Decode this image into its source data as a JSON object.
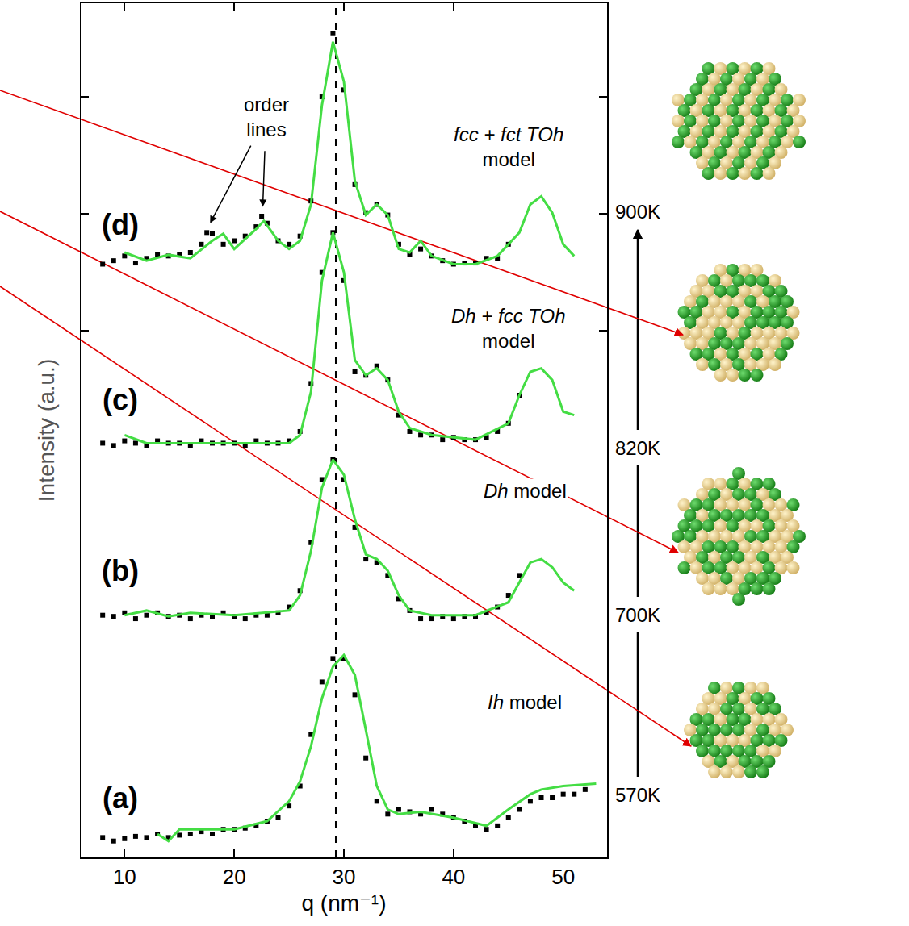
{
  "chart_data": {
    "type": "line",
    "xlabel": "q (nm⁻¹)",
    "ylabel": "Intensity (a.u.)",
    "xlim": [
      6,
      54
    ],
    "xticks": [
      10,
      20,
      30,
      40,
      50
    ],
    "ylim": [
      0,
      7.3
    ],
    "yticks": [
      0.5,
      1.5,
      2.5,
      3.5,
      4.5,
      5.5,
      6.5
    ],
    "tick_labels": "x",
    "grid": false,
    "vline": 29.3,
    "series": [
      {
        "name": "(a)",
        "type": "scatter",
        "marker": "square",
        "color": "#000000",
        "label_at": [
          9.6,
          0.51
        ],
        "x": [
          8,
          9,
          10,
          11,
          12,
          13,
          14,
          15,
          16,
          17,
          18,
          19,
          20,
          21,
          22,
          23,
          24,
          25,
          26,
          27,
          28,
          29,
          30,
          31,
          32,
          33,
          34,
          35,
          36,
          37,
          38,
          39,
          40,
          41,
          42,
          43,
          44,
          45,
          46,
          47,
          48,
          49,
          50,
          51,
          52
        ],
        "values": [
          0.17,
          0.14,
          0.16,
          0.18,
          0.17,
          0.2,
          0.17,
          0.19,
          0.2,
          0.22,
          0.2,
          0.24,
          0.24,
          0.25,
          0.27,
          0.31,
          0.34,
          0.44,
          0.61,
          1.05,
          1.5,
          1.7,
          1.7,
          1.39,
          0.85,
          0.48,
          0.37,
          0.41,
          0.39,
          0.37,
          0.41,
          0.37,
          0.34,
          0.31,
          0.27,
          0.24,
          0.27,
          0.34,
          0.41,
          0.48,
          0.51,
          0.51,
          0.54,
          0.54,
          0.58
        ]
      },
      {
        "name": "Ih model",
        "type": "line",
        "line_style": "solid",
        "color": "#44dd44",
        "label_at": [
          46.5,
          1.33
        ],
        "x": [
          13,
          14,
          15,
          17,
          20,
          23,
          25,
          26,
          27,
          28,
          29,
          30,
          31,
          32,
          33,
          34,
          35,
          37,
          40,
          43,
          45,
          47,
          48,
          50,
          53
        ],
        "values": [
          0.2,
          0.14,
          0.24,
          0.24,
          0.24,
          0.31,
          0.48,
          0.65,
          0.95,
          1.36,
          1.63,
          1.73,
          1.56,
          1.09,
          0.61,
          0.41,
          0.37,
          0.39,
          0.34,
          0.27,
          0.41,
          0.54,
          0.58,
          0.61,
          0.63
        ]
      },
      {
        "name": "(b)",
        "type": "scatter",
        "marker": "square",
        "color": "#000000",
        "label_at": [
          9.6,
          2.45
        ],
        "x": [
          8,
          9,
          10,
          11,
          12,
          13,
          14,
          15,
          16,
          17,
          18,
          19,
          20,
          21,
          22,
          23,
          24,
          25,
          26,
          27,
          28,
          29,
          30,
          31,
          32,
          33,
          34,
          35,
          36,
          37,
          38,
          39,
          40,
          41,
          42,
          43,
          44,
          45,
          46
        ],
        "values": [
          2.07,
          2.06,
          2.09,
          2.04,
          2.07,
          2.09,
          2.06,
          2.07,
          2.04,
          2.07,
          2.06,
          2.09,
          2.06,
          2.04,
          2.07,
          2.07,
          2.09,
          2.14,
          2.28,
          2.69,
          3.23,
          3.4,
          3.23,
          2.82,
          2.55,
          2.52,
          2.41,
          2.21,
          2.11,
          2.04,
          2.04,
          2.06,
          2.04,
          2.06,
          2.06,
          2.09,
          2.14,
          2.24,
          2.41
        ]
      },
      {
        "name": "Dh model",
        "type": "line",
        "line_style": "solid",
        "color": "#44dd44",
        "label_at": [
          46.5,
          3.13
        ],
        "x": [
          10,
          12,
          14,
          16,
          20,
          25,
          26,
          27,
          28,
          29,
          30,
          31,
          32,
          33,
          34,
          35,
          36,
          38,
          42,
          45,
          46,
          47,
          48,
          49,
          50,
          51
        ],
        "values": [
          2.07,
          2.11,
          2.06,
          2.09,
          2.07,
          2.11,
          2.24,
          2.62,
          3.16,
          3.4,
          3.27,
          2.89,
          2.59,
          2.55,
          2.45,
          2.24,
          2.11,
          2.07,
          2.07,
          2.18,
          2.35,
          2.52,
          2.55,
          2.48,
          2.35,
          2.28
        ]
      },
      {
        "name": "(c)",
        "type": "scatter",
        "marker": "square",
        "color": "#000000",
        "label_at": [
          9.6,
          3.91
        ],
        "x": [
          8,
          9,
          10,
          11,
          12,
          13,
          14,
          15,
          16,
          17,
          18,
          19,
          20,
          21,
          22,
          23,
          24,
          25,
          26,
          27,
          28,
          29,
          30,
          31,
          32,
          33,
          34,
          35,
          36,
          37,
          38,
          39,
          40,
          41,
          42,
          43,
          44,
          45,
          46
        ],
        "values": [
          3.54,
          3.52,
          3.56,
          3.54,
          3.52,
          3.56,
          3.54,
          3.54,
          3.52,
          3.56,
          3.54,
          3.54,
          3.54,
          3.52,
          3.56,
          3.54,
          3.54,
          3.56,
          3.64,
          4.05,
          5.0,
          5.34,
          4.93,
          4.15,
          4.12,
          4.2,
          4.08,
          3.78,
          3.64,
          3.61,
          3.61,
          3.57,
          3.59,
          3.57,
          3.57,
          3.59,
          3.64,
          3.71,
          3.95
        ]
      },
      {
        "name": "Dh + fcc TOh model",
        "type": "line",
        "line_style": "solid",
        "color": "#44dd44",
        "label_at": [
          45,
          4.52
        ],
        "x": [
          10,
          12,
          15,
          20,
          25,
          26,
          27,
          28,
          29,
          30,
          31,
          32,
          33,
          34,
          35,
          36,
          38,
          42,
          45,
          46,
          47,
          48,
          49,
          50,
          51
        ],
        "values": [
          3.61,
          3.54,
          3.54,
          3.54,
          3.54,
          3.61,
          3.98,
          4.93,
          5.34,
          5.0,
          4.25,
          4.12,
          4.18,
          4.08,
          3.81,
          3.67,
          3.61,
          3.57,
          3.71,
          3.95,
          4.15,
          4.18,
          4.08,
          3.81,
          3.78
        ]
      },
      {
        "name": "(d)",
        "type": "scatter",
        "marker": "square",
        "color": "#000000",
        "label_at": [
          9.6,
          5.41
        ],
        "x": [
          8,
          9,
          10,
          11,
          12,
          13,
          14,
          15,
          16,
          17,
          17.5,
          18,
          19,
          20,
          21,
          22,
          22.5,
          23,
          24,
          25,
          26,
          27,
          28,
          29,
          30,
          31,
          32,
          33,
          34,
          35,
          36,
          37,
          38,
          39,
          40,
          41,
          42,
          43,
          44,
          45
        ],
        "values": [
          5.07,
          5.1,
          5.14,
          5.08,
          5.12,
          5.15,
          5.14,
          5.15,
          5.17,
          5.24,
          5.34,
          5.33,
          5.24,
          5.27,
          5.31,
          5.39,
          5.48,
          5.42,
          5.27,
          5.24,
          5.31,
          5.61,
          6.5,
          7.04,
          6.56,
          5.75,
          5.51,
          5.58,
          5.49,
          5.24,
          5.15,
          5.2,
          5.14,
          5.1,
          5.07,
          5.08,
          5.08,
          5.12,
          5.12,
          5.24
        ]
      },
      {
        "name": "fcc + fct TOh model",
        "type": "line",
        "line_style": "solid",
        "color": "#44dd44",
        "label_at": [
          45,
          6.07
        ],
        "x": [
          10,
          12,
          14,
          16,
          18,
          19,
          20,
          22,
          22.7,
          24,
          25,
          26,
          27,
          28,
          29,
          30,
          31,
          32,
          33,
          34,
          35,
          36,
          37,
          38,
          40,
          42,
          44,
          46,
          47,
          48,
          49,
          50,
          51
        ],
        "values": [
          5.17,
          5.1,
          5.15,
          5.12,
          5.27,
          5.33,
          5.2,
          5.37,
          5.44,
          5.27,
          5.2,
          5.27,
          5.58,
          6.43,
          6.97,
          6.63,
          5.78,
          5.49,
          5.58,
          5.49,
          5.2,
          5.17,
          5.27,
          5.14,
          5.07,
          5.07,
          5.14,
          5.34,
          5.58,
          5.65,
          5.51,
          5.24,
          5.14
        ]
      }
    ],
    "annotations": [
      {
        "text": "order lines",
        "x": 22.9,
        "y": 6.33,
        "arrows_to": [
          [
            17.8,
            5.42
          ],
          [
            22.6,
            5.56
          ]
        ]
      }
    ],
    "temperatures": [
      "900K",
      "820K",
      "700K",
      "570K"
    ]
  }
}
